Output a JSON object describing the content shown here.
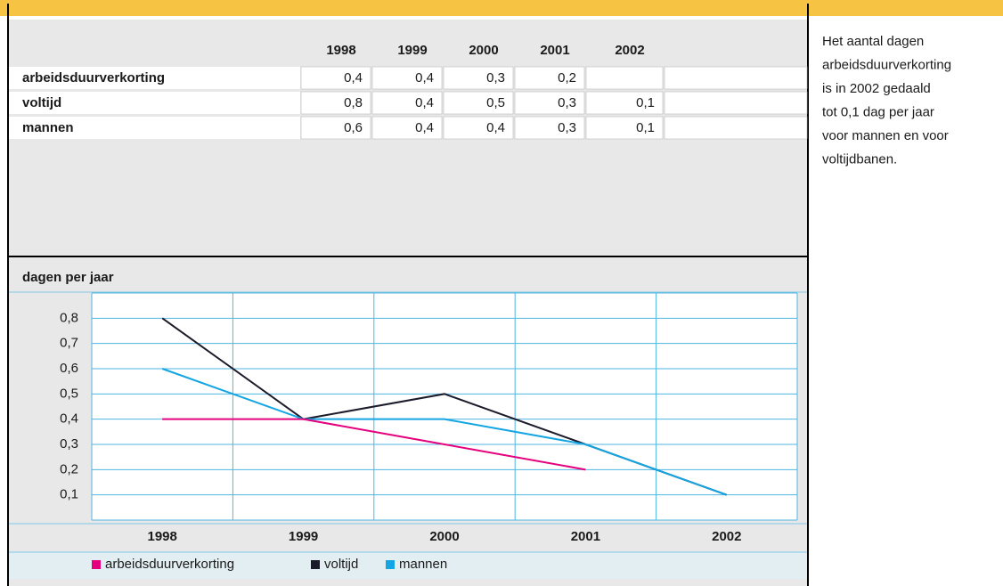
{
  "table": {
    "columns": [
      "1998",
      "1999",
      "2000",
      "2001",
      "2002"
    ],
    "rows": [
      {
        "label": "arbeidsduurverkorting",
        "cells": [
          "0,4",
          "0,4",
          "0,3",
          "0,2",
          null
        ]
      },
      {
        "label": "voltijd",
        "cells": [
          "0,8",
          "0,4",
          "0,5",
          "0,3",
          "0,1"
        ]
      },
      {
        "label": "mannen",
        "cells": [
          "0,6",
          "0,4",
          "0,4",
          "0,3",
          "0,1"
        ]
      }
    ]
  },
  "chart_data": {
    "type": "line",
    "axis_label": "dagen per jaar",
    "categories": [
      "1998",
      "1999",
      "2000",
      "2001",
      "2002"
    ],
    "series": [
      {
        "name": "arbeidsduurverkorting",
        "color": "#e5007d",
        "values": [
          0.4,
          0.4,
          0.3,
          0.2,
          null
        ]
      },
      {
        "name": "voltijd",
        "color": "#1b1b2b",
        "values": [
          0.8,
          0.4,
          0.5,
          0.3,
          0.1
        ]
      },
      {
        "name": "mannen",
        "color": "#14a5e3",
        "values": [
          0.6,
          0.4,
          0.4,
          0.3,
          0.1
        ]
      }
    ],
    "ylim": [
      0,
      0.9
    ],
    "yticks": [
      {
        "value": 0.1,
        "label": "0,1"
      },
      {
        "value": 0.2,
        "label": "0,2"
      },
      {
        "value": 0.3,
        "label": "0,3"
      },
      {
        "value": 0.4,
        "label": "0,4"
      },
      {
        "value": 0.5,
        "label": "0,5"
      },
      {
        "value": 0.6,
        "label": "0,6"
      },
      {
        "value": 0.7,
        "label": "0,7"
      },
      {
        "value": 0.8,
        "label": "0,8"
      }
    ],
    "grid": true
  },
  "note": [
    "Het aantal dagen",
    "arbeidsduurverkorting",
    "is in 2002 gedaald",
    "tot 0,1 dag per jaar",
    "voor mannen en voor",
    "voltijdbanen."
  ]
}
